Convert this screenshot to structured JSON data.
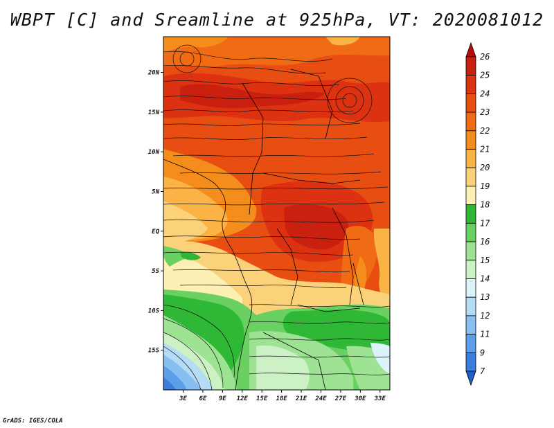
{
  "title": "WBPT [C] and Sreamline at 925hPa, VT: 2020081012",
  "credit": "GrADS: IGES/COLA",
  "map": {
    "lat_labels": [
      "20N",
      "15N",
      "10N",
      "5N",
      "EQ",
      "5S",
      "10S",
      "15S"
    ],
    "lat_values": [
      20,
      15,
      10,
      5,
      0,
      -5,
      -10,
      -15
    ],
    "lon_labels": [
      "3E",
      "6E",
      "9E",
      "12E",
      "15E",
      "18E",
      "21E",
      "24E",
      "27E",
      "30E",
      "33E"
    ],
    "lon_values": [
      3,
      6,
      9,
      12,
      15,
      18,
      21,
      24,
      27,
      30,
      33
    ],
    "lon_range": [
      0,
      34.5
    ],
    "lat_range": [
      -20,
      24.5
    ]
  },
  "colorbar": {
    "labels": [
      "26",
      "25",
      "24",
      "23",
      "22",
      "21",
      "20",
      "19",
      "18",
      "17",
      "16",
      "15",
      "14",
      "13",
      "12",
      "11",
      "9",
      "7"
    ],
    "colors": [
      "#b50d0d",
      "#c9200f",
      "#dc3211",
      "#e84e12",
      "#f06b14",
      "#f58d1c",
      "#fab344",
      "#fbd27a",
      "#fdf0b4",
      "#2fb835",
      "#6ad062",
      "#9ee394",
      "#cbf1c4",
      "#dcf3fb",
      "#b5dcf6",
      "#86bff0",
      "#5a9fe8",
      "#3a7ddc",
      "#1e5fcc"
    ]
  }
}
